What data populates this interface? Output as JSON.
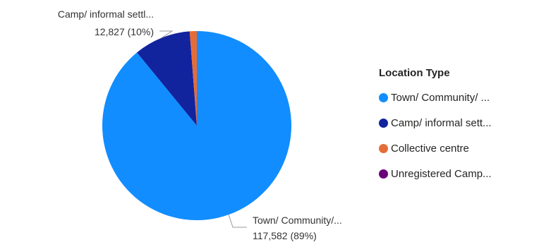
{
  "chart_data": {
    "type": "pie",
    "categories": [
      "Town/ Community/ ...",
      "Camp/ informal sett...",
      "Collective centre",
      "Unregistered Camp..."
    ],
    "values": [
      117582,
      12827,
      1600,
      0
    ],
    "colors": [
      "#118DFF",
      "#12239E",
      "#E66C37",
      "#6B007B"
    ],
    "legend_title": "Location Type",
    "legend_position": "right",
    "callouts": [
      {
        "label": "Town/ Community/...",
        "value_text": "117,582 (89%)"
      },
      {
        "label": "Camp/ informal settl...",
        "value_text": "12,827 (10%)"
      }
    ]
  }
}
